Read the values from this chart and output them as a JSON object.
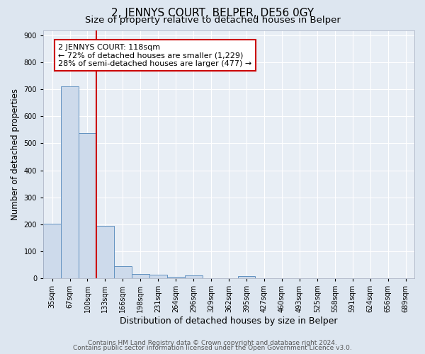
{
  "title": "2, JENNYS COURT, BELPER, DE56 0GY",
  "subtitle": "Size of property relative to detached houses in Belper",
  "xlabel": "Distribution of detached houses by size in Belper",
  "ylabel": "Number of detached properties",
  "bar_labels": [
    "35sqm",
    "67sqm",
    "100sqm",
    "133sqm",
    "166sqm",
    "198sqm",
    "231sqm",
    "264sqm",
    "296sqm",
    "329sqm",
    "362sqm",
    "395sqm",
    "427sqm",
    "460sqm",
    "493sqm",
    "525sqm",
    "558sqm",
    "591sqm",
    "624sqm",
    "656sqm",
    "689sqm"
  ],
  "bar_values": [
    203,
    710,
    537,
    193,
    45,
    15,
    13,
    5,
    10,
    0,
    0,
    7,
    0,
    0,
    0,
    0,
    0,
    0,
    0,
    0,
    0
  ],
  "bar_color": "#cddaeb",
  "bar_edge_color": "#6191c0",
  "vline_x": 2.5,
  "vline_color": "#cc0000",
  "annotation_text": "2 JENNYS COURT: 118sqm\n← 72% of detached houses are smaller (1,229)\n28% of semi-detached houses are larger (477) →",
  "annotation_box_color": "#ffffff",
  "annotation_box_edge": "#cc0000",
  "ylim": [
    0,
    920
  ],
  "yticks": [
    0,
    100,
    200,
    300,
    400,
    500,
    600,
    700,
    800,
    900
  ],
  "background_color": "#dde6f0",
  "plot_bg_color": "#e8eef5",
  "grid_color": "#ffffff",
  "footer_line1": "Contains HM Land Registry data © Crown copyright and database right 2024.",
  "footer_line2": "Contains public sector information licensed under the Open Government Licence v3.0.",
  "title_fontsize": 11,
  "subtitle_fontsize": 9.5,
  "xlabel_fontsize": 9,
  "ylabel_fontsize": 8.5,
  "tick_fontsize": 7,
  "annotation_fontsize": 8,
  "footer_fontsize": 6.5
}
